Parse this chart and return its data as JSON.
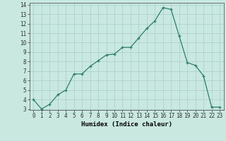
{
  "xlabel": "Humidex (Indice chaleur)",
  "x_values": [
    0,
    1,
    2,
    3,
    4,
    5,
    6,
    7,
    8,
    9,
    10,
    11,
    12,
    13,
    14,
    15,
    16,
    17,
    18,
    19,
    20,
    21,
    22,
    23
  ],
  "y_values": [
    4,
    3,
    3.5,
    4.5,
    5,
    6.7,
    6.7,
    7.5,
    8.1,
    8.7,
    8.8,
    9.5,
    9.5,
    10.5,
    11.5,
    12.3,
    13.7,
    13.5,
    10.7,
    7.9,
    7.6,
    6.5,
    3.2,
    3.2
  ],
  "line_color": "#2e7d6e",
  "marker": "+",
  "background_color": "#c8e8e0",
  "grid_color": "#aacec8",
  "ylim": [
    3,
    14
  ],
  "yticks": [
    3,
    4,
    5,
    6,
    7,
    8,
    9,
    10,
    11,
    12,
    13,
    14
  ],
  "xlim": [
    -0.5,
    23.5
  ],
  "axis_fontsize": 6.5,
  "tick_fontsize": 5.5
}
